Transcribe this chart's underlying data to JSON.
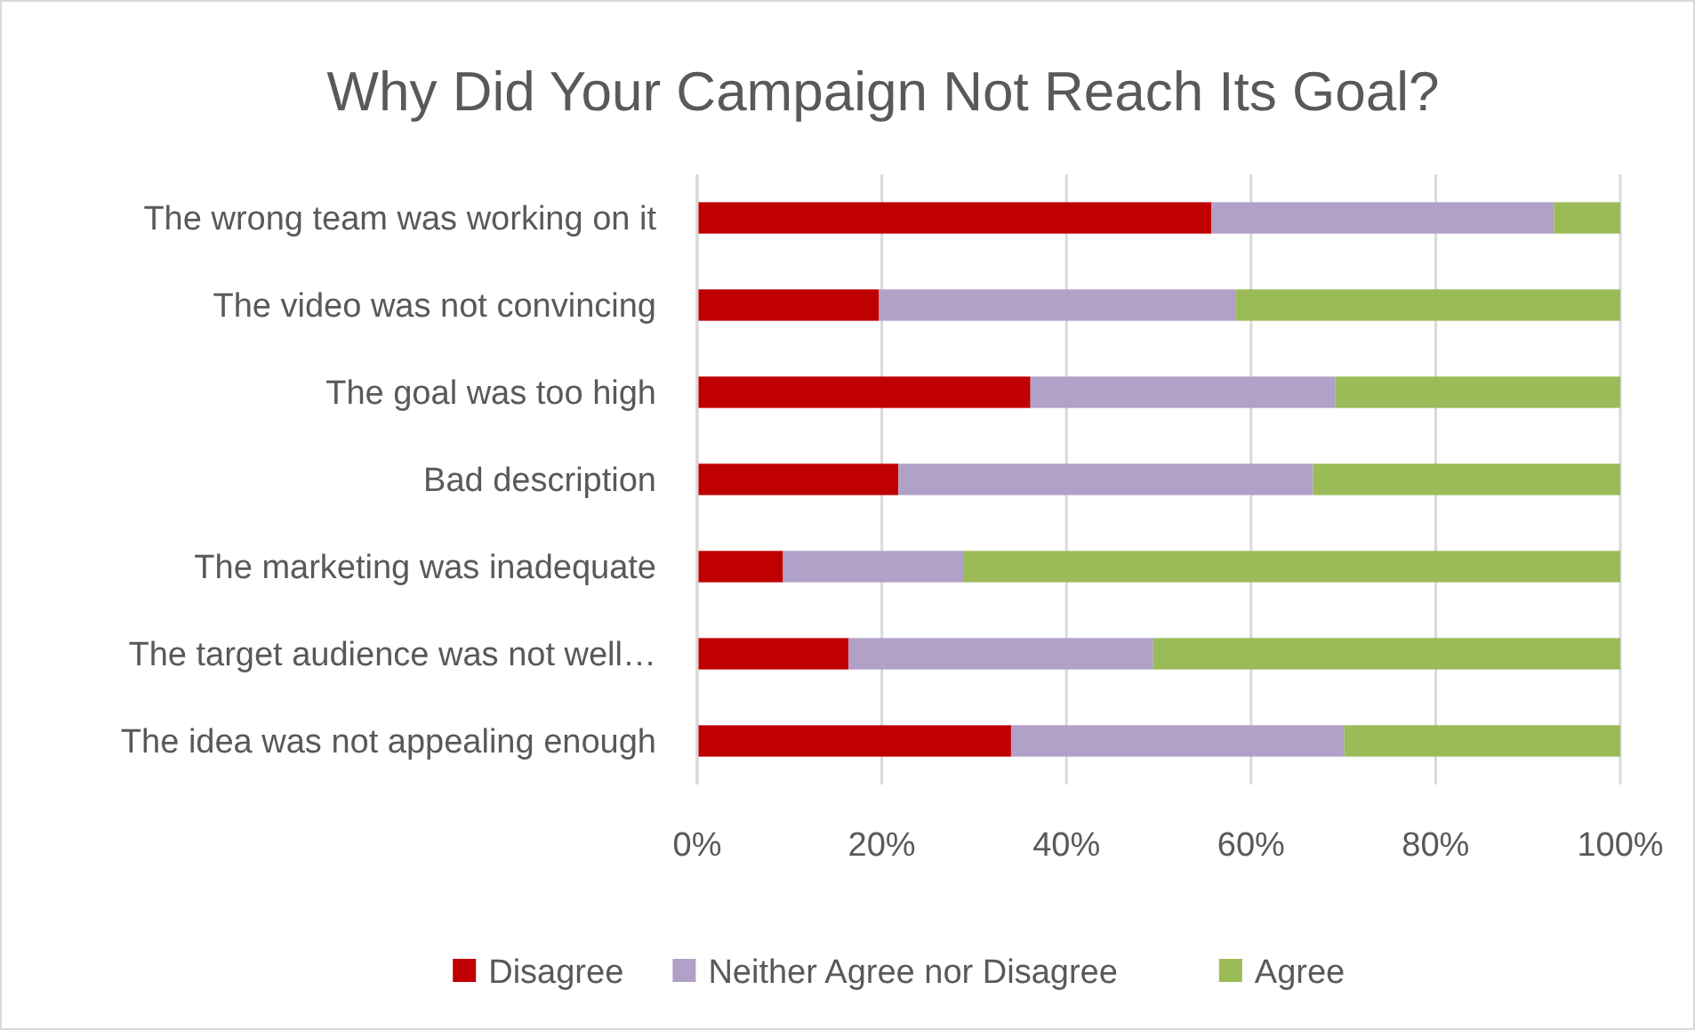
{
  "chart_data": {
    "type": "bar",
    "orientation": "horizontal",
    "stacked": true,
    "title": "Why Did Your Campaign Not Reach Its Goal?",
    "categories": [
      "The wrong team was working on it",
      "The video was not convincing",
      "The goal was too high",
      "Bad description",
      "The marketing was inadequate",
      "The target audience was not well…",
      "The idea was not appealing enough"
    ],
    "series": [
      {
        "name": "Disagree",
        "color": "#c00000",
        "values": [
          55.7,
          19.7,
          36.1,
          21.8,
          9.3,
          16.4,
          34.0
        ]
      },
      {
        "name": "Neither Agree nor Disagree",
        "color": "#b1a0c7",
        "values": [
          37.1,
          38.6,
          33.0,
          44.9,
          19.5,
          33.0,
          36.1
        ]
      },
      {
        "name": "Agree",
        "color": "#9bbb59",
        "values": [
          7.2,
          41.7,
          30.9,
          33.3,
          71.2,
          50.6,
          29.9
        ]
      }
    ],
    "xlim": [
      0,
      100
    ],
    "xticks": [
      {
        "value": 0,
        "label": "0%"
      },
      {
        "value": 20,
        "label": "20%"
      },
      {
        "value": 40,
        "label": "40%"
      },
      {
        "value": 60,
        "label": "60%"
      },
      {
        "value": 80,
        "label": "80%"
      },
      {
        "value": 100,
        "label": "100%"
      }
    ],
    "grid": "x",
    "legend": "bottom"
  }
}
